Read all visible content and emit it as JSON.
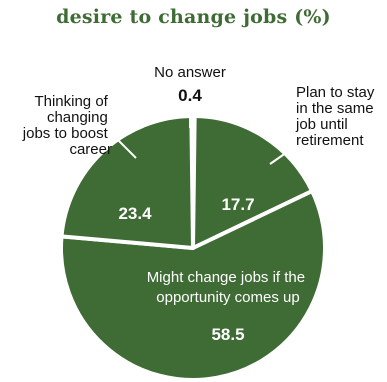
{
  "chart_data": {
    "type": "pie",
    "title": "desire to change jobs (%)",
    "slices": [
      {
        "label": "No answer",
        "value": 0.4,
        "color": "#3f6b35"
      },
      {
        "label": "Plan to stay in the same job until retirement",
        "value": 17.7,
        "color": "#3f6b35"
      },
      {
        "label": "Might change jobs if the opportunity comes up",
        "value": 58.5,
        "color": "#3f6b35"
      },
      {
        "label": "Thinking of changing jobs to boost career",
        "value": 23.4,
        "color": "#3f6b35"
      }
    ],
    "value_labels": [
      "0.4",
      "17.7",
      "58.5",
      "23.4"
    ]
  },
  "label_lines": {
    "no_answer": [
      "No answer"
    ],
    "stay": [
      "Plan to stay",
      "in the same",
      "job until",
      "retirement"
    ],
    "might": [
      "Might change jobs if the",
      "opportunity comes up"
    ],
    "thinking": [
      "Thinking of",
      "changing",
      "jobs to boost",
      "career"
    ]
  },
  "colors": {
    "slice": "#3f6b35",
    "separator": "#ffffff",
    "title": "#3f6b35"
  }
}
